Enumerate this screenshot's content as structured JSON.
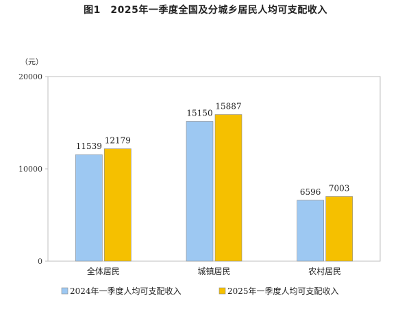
{
  "title": "图1　2025年一季度全国及分城乡居民人均可支配收入",
  "chart_data": {
    "type": "bar",
    "unit": "（元）",
    "categories": [
      "全体居民",
      "城镇居民",
      "农村居民"
    ],
    "series": [
      {
        "name": "2024年一季度人均可支配收入",
        "values": [
          11539,
          15150,
          6596
        ],
        "color": "#9DC8F2"
      },
      {
        "name": "2025年一季度人均可支配收入",
        "values": [
          12179,
          15887,
          7003
        ],
        "color": "#F5C000"
      }
    ],
    "ylim": [
      0,
      20000
    ],
    "yticks": [
      0,
      10000,
      20000
    ],
    "grid": false,
    "legend_position": "bottom"
  }
}
